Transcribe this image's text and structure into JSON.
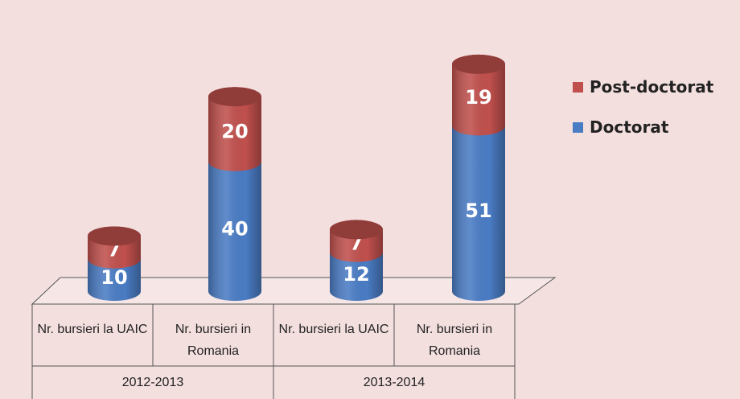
{
  "chart_data": {
    "type": "bar",
    "categories": [
      "Nr. bursieri la UAIC",
      "Nr. bursieri in Romania",
      "Nr. bursieri la UAIC",
      "Nr. bursieri in Romania"
    ],
    "groups": [
      "2012-2013",
      "2013-2014"
    ],
    "series": [
      {
        "name": "Doctorat",
        "color": "#4a7cc4",
        "values": [
          10,
          40,
          12,
          51
        ]
      },
      {
        "name": "Post-doctorat",
        "color": "#c0504d",
        "values": [
          7,
          20,
          7,
          19
        ]
      }
    ],
    "stacked": true
  }
}
